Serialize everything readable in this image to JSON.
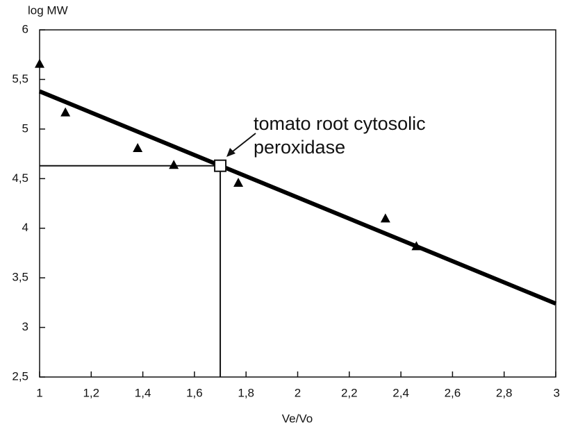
{
  "chart_data": {
    "type": "scatter",
    "ylabel": "log MW",
    "xlabel": "Ve/Vo",
    "annotation": [
      "tomato root cytosolic",
      "peroxidase"
    ],
    "x": [
      1.0,
      1.1,
      1.38,
      1.52,
      1.77,
      2.34,
      2.46
    ],
    "values": [
      5.66,
      5.17,
      4.81,
      4.64,
      4.46,
      4.1,
      3.82
    ],
    "color": "#000000",
    "fit_line": {
      "x": [
        1,
        3
      ],
      "y": [
        5.38,
        3.24
      ]
    },
    "unknown": {
      "x": 1.7,
      "y": 4.63
    },
    "xlim": [
      1,
      3
    ],
    "xticks": [
      1,
      {
        "value": 1.2,
        "label": "1,2"
      },
      {
        "value": 1.4,
        "label": "1,4"
      },
      {
        "value": 1.6,
        "label": "1,6"
      },
      {
        "value": 1.8,
        "label": "1,8"
      },
      2,
      {
        "value": 2.2,
        "label": "2,2"
      },
      {
        "value": 2.4,
        "label": "2,4"
      },
      {
        "value": 2.6,
        "label": "2,6"
      },
      {
        "value": 2.8,
        "label": "2,8"
      },
      3
    ],
    "ylim": [
      2.5,
      6
    ],
    "yticks": [
      {
        "value": 2.5,
        "label": "2,5"
      },
      3,
      {
        "value": 3.5,
        "label": "3,5"
      },
      4,
      {
        "value": 4.5,
        "label": "4,5"
      },
      5,
      {
        "value": 5.5,
        "label": "5,5"
      },
      6
    ]
  }
}
